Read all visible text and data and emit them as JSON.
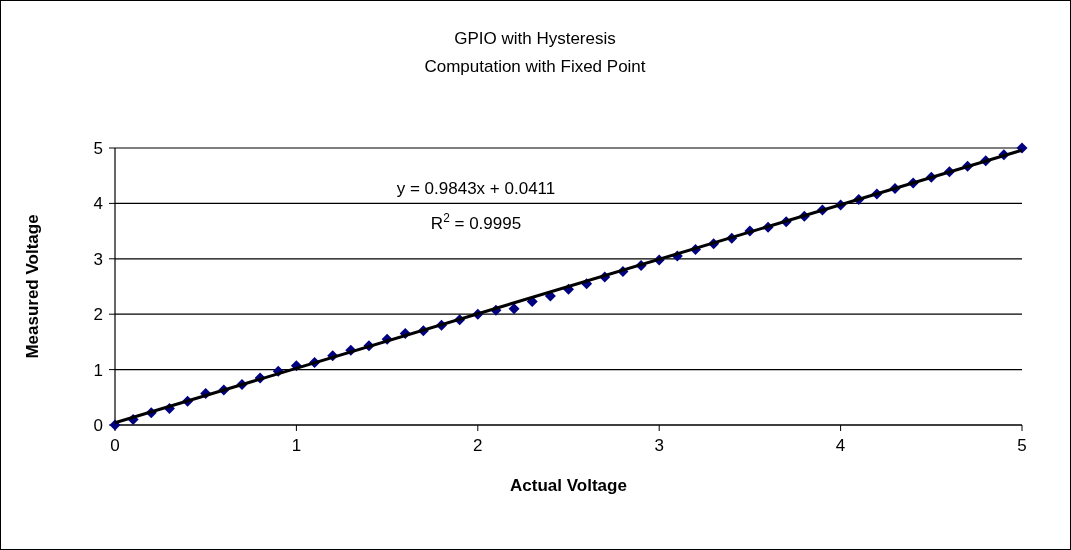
{
  "chart_data": {
    "type": "scatter",
    "title": "GPIO with Hysteresis",
    "subtitle": "Computation with Fixed Point",
    "xlabel": "Actual Voltage",
    "ylabel": "Measured Voltage",
    "x": [
      0,
      0.1,
      0.2,
      0.3,
      0.4,
      0.5,
      0.6,
      0.7,
      0.8,
      0.9,
      1,
      1.1,
      1.2,
      1.3,
      1.4,
      1.5,
      1.6,
      1.7,
      1.8,
      1.9,
      2,
      2.1,
      2.2,
      2.3,
      2.4,
      2.5,
      2.6,
      2.7,
      2.8,
      2.9,
      3,
      3.1,
      3.2,
      3.3,
      3.4,
      3.5,
      3.6,
      3.7,
      3.8,
      3.9,
      4,
      4.1,
      4.2,
      4.3,
      4.4,
      4.5,
      4.6,
      4.7,
      4.8,
      4.9,
      5
    ],
    "series": [
      {
        "color": "#000080",
        "marker": "diamond",
        "values": [
          0,
          0.1,
          0.22,
          0.3,
          0.43,
          0.57,
          0.63,
          0.73,
          0.85,
          0.97,
          1.07,
          1.13,
          1.25,
          1.35,
          1.43,
          1.55,
          1.65,
          1.7,
          1.8,
          1.9,
          2,
          2.07,
          2.1,
          2.23,
          2.33,
          2.45,
          2.55,
          2.67,
          2.77,
          2.88,
          2.98,
          3.05,
          3.17,
          3.27,
          3.37,
          3.5,
          3.57,
          3.67,
          3.77,
          3.88,
          3.97,
          4.07,
          4.17,
          4.27,
          4.37,
          4.47,
          4.57,
          4.67,
          4.77,
          4.88,
          5
        ]
      },
      {
        "type": "line",
        "color": "#000000",
        "x": [
          0,
          5
        ],
        "values": [
          0.04,
          4.96
        ]
      }
    ],
    "annotations": [
      "y = 0.9843x + 0.0411",
      "R$^{2}$ = 0.9995"
    ],
    "xlim": [
      0,
      5
    ],
    "xticks": [
      0,
      1,
      2,
      3,
      4,
      5
    ],
    "ylim": [
      0,
      5
    ],
    "yticks": [
      0,
      1,
      2,
      3,
      4,
      5
    ],
    "grid": "y"
  }
}
